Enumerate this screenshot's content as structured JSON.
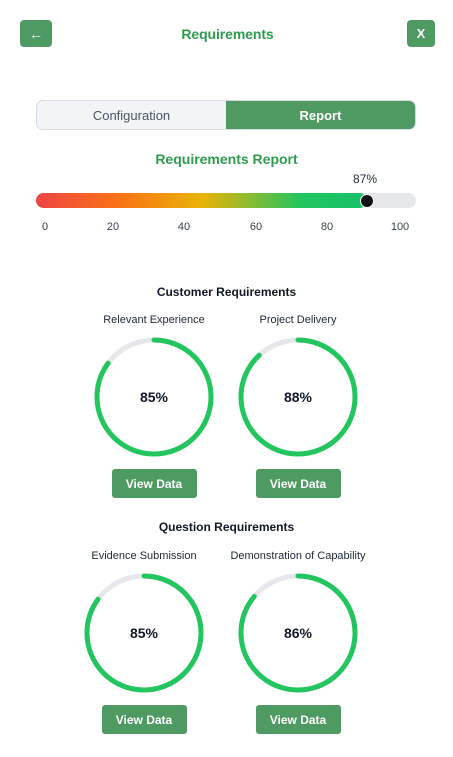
{
  "header": {
    "back_icon": "arrow-left-icon",
    "back_glyph": "←",
    "title": "Requirements",
    "close_label": "X"
  },
  "tabs": [
    {
      "label": "Configuration",
      "active": false
    },
    {
      "label": "Report",
      "active": true
    }
  ],
  "report": {
    "title": "Requirements Report",
    "score": 87,
    "score_label": "87%",
    "ticks": [
      "0",
      "20",
      "40",
      "60",
      "80",
      "100"
    ]
  },
  "sections": [
    {
      "title": "Customer Requirements",
      "cards": [
        {
          "label": "Relevant Experience",
          "value": 85,
          "value_label": "85%",
          "button": "View Data"
        },
        {
          "label": "Project Delivery",
          "value": 88,
          "value_label": "88%",
          "button": "View Data"
        }
      ]
    },
    {
      "title": "Question Requirements",
      "cards": [
        {
          "label": "Evidence Submission",
          "value": 85,
          "value_label": "85%",
          "button": "View Data"
        },
        {
          "label": "Demonstration of Capability",
          "value": 86,
          "value_label": "86%",
          "button": "View Data"
        }
      ]
    }
  ],
  "colors": {
    "accent": "#4f9a63",
    "title_green": "#2e9b4f",
    "ring_green": "#22c55e",
    "ring_track": "#e5e7eb"
  }
}
